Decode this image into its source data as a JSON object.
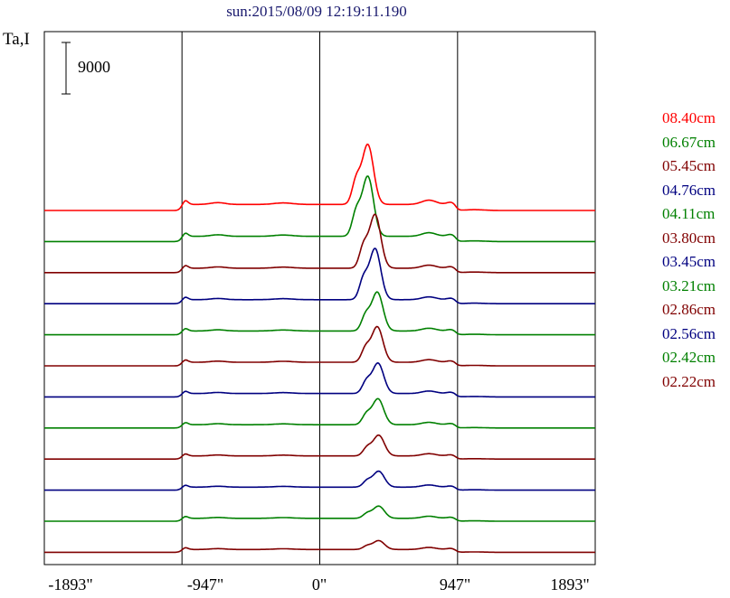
{
  "title": "sun:2015/08/09 12:19:11.190",
  "ylabel": "Ta,I",
  "scale_bar": {
    "label": "9000"
  },
  "x_ticks": [
    "-1893\"",
    "-947\"",
    "0\"",
    "947\"",
    "1893\""
  ],
  "legend": [
    {
      "label": "08.40cm",
      "color": "#ff0000"
    },
    {
      "label": "06.67cm",
      "color": "#008000"
    },
    {
      "label": "05.45cm",
      "color": "#800000"
    },
    {
      "label": "04.76cm",
      "color": "#000080"
    },
    {
      "label": "04.11cm",
      "color": "#008000"
    },
    {
      "label": "03.80cm",
      "color": "#800000"
    },
    {
      "label": "03.45cm",
      "color": "#000080"
    },
    {
      "label": "03.21cm",
      "color": "#008000"
    },
    {
      "label": "02.86cm",
      "color": "#800000"
    },
    {
      "label": "02.56cm",
      "color": "#000080"
    },
    {
      "label": "02.42cm",
      "color": "#008000"
    },
    {
      "label": "02.22cm",
      "color": "#800000"
    }
  ],
  "chart_data": {
    "type": "line",
    "title": "sun:2015/08/09 12:19:11.190",
    "ylabel": "Ta,I",
    "xlim": [
      -1893,
      1893
    ],
    "x_ticks": [
      -1893,
      -947,
      0,
      947,
      1893
    ],
    "vertical_lines_at": [
      -947,
      0,
      947
    ],
    "y_scale_bar": 9000,
    "grid": false,
    "legend_placement": "right",
    "stacked_offset_profiles": true,
    "series": [
      {
        "name": "08.40cm",
        "color": "#ff0000",
        "baseline": 0,
        "limb": 3800,
        "disk": 1500,
        "peak": 16200,
        "peak_x": 330
      },
      {
        "name": "06.67cm",
        "color": "#008000",
        "baseline": 0,
        "limb": 3200,
        "disk": 1300,
        "peak": 16200,
        "peak_x": 330
      },
      {
        "name": "05.45cm",
        "color": "#800000",
        "baseline": 0,
        "limb": 2700,
        "disk": 1100,
        "peak": 14500,
        "peak_x": 380
      },
      {
        "name": "04.76cm",
        "color": "#000080",
        "baseline": 0,
        "limb": 2500,
        "disk": 1000,
        "peak": 13800,
        "peak_x": 380
      },
      {
        "name": "04.11cm",
        "color": "#008000",
        "baseline": 0,
        "limb": 2400,
        "disk": 950,
        "peak": 10500,
        "peak_x": 395
      },
      {
        "name": "03.80cm",
        "color": "#800000",
        "baseline": 0,
        "limb": 2300,
        "disk": 900,
        "peak": 9600,
        "peak_x": 395
      },
      {
        "name": "03.45cm",
        "color": "#000080",
        "baseline": 0,
        "limb": 2200,
        "disk": 850,
        "peak": 8200,
        "peak_x": 400
      },
      {
        "name": "03.21cm",
        "color": "#008000",
        "baseline": 0,
        "limb": 2100,
        "disk": 820,
        "peak": 7000,
        "peak_x": 400
      },
      {
        "name": "02.86cm",
        "color": "#800000",
        "baseline": 0,
        "limb": 2000,
        "disk": 780,
        "peak": 5600,
        "peak_x": 405
      },
      {
        "name": "02.56cm",
        "color": "#000080",
        "baseline": 0,
        "limb": 1900,
        "disk": 750,
        "peak": 4300,
        "peak_x": 405
      },
      {
        "name": "02.42cm",
        "color": "#008000",
        "baseline": 0,
        "limb": 1850,
        "disk": 720,
        "peak": 3300,
        "peak_x": 405
      },
      {
        "name": "02.22cm",
        "color": "#800000",
        "baseline": 0,
        "limb": 1800,
        "disk": 700,
        "peak": 2400,
        "peak_x": 405
      }
    ]
  }
}
